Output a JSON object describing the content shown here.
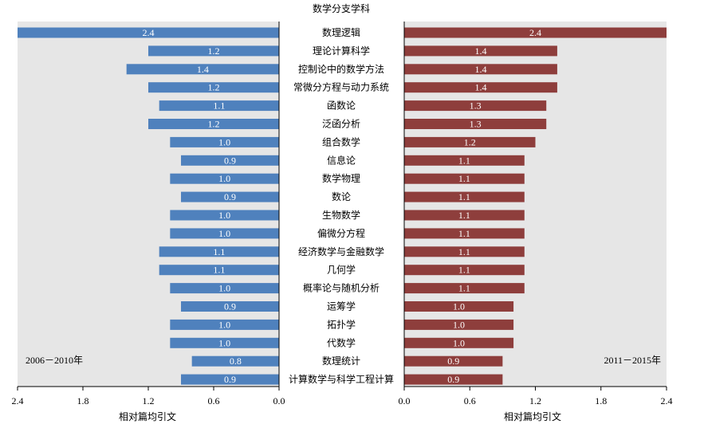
{
  "chart_data": {
    "type": "bar",
    "title": "数学分支学科",
    "categories": [
      "数理逻辑",
      "理论计算科学",
      "控制论中的数学方法",
      "常微分方程与动力系统",
      "函数论",
      "泛函分析",
      "组合数学",
      "信息论",
      "数学物理",
      "数论",
      "生物数学",
      "偏微分方程",
      "经济数学与金融数学",
      "几何学",
      "概率论与随机分析",
      "运筹学",
      "拓扑学",
      "代数学",
      "数理统计",
      "计算数学与科学工程计算"
    ],
    "series": [
      {
        "name": "2006－2010年",
        "color": "#4f81bd",
        "values": [
          2.4,
          1.2,
          1.4,
          1.2,
          1.1,
          1.2,
          1.0,
          0.9,
          1.0,
          0.9,
          1.0,
          1.0,
          1.1,
          1.1,
          1.0,
          0.9,
          1.0,
          1.0,
          0.8,
          0.9
        ],
        "labels": [
          "2.4",
          "1.2",
          "1.4",
          "1.2",
          "1.1",
          "1.2",
          "1.0",
          "0.9",
          "1.0",
          "0.9",
          "1.0",
          "1.0",
          "1.1",
          "1.1",
          "1.0",
          "0.9",
          "1.0",
          "1.0",
          "0.8",
          "0.9"
        ],
        "direction": "left"
      },
      {
        "name": "2011－2015年",
        "color": "#8e3e3c",
        "values": [
          2.4,
          1.4,
          1.4,
          1.4,
          1.3,
          1.3,
          1.2,
          1.1,
          1.1,
          1.1,
          1.1,
          1.1,
          1.1,
          1.1,
          1.1,
          1.0,
          1.0,
          1.0,
          0.9,
          0.9
        ],
        "labels": [
          "2.4",
          "1.4",
          "1.4",
          "1.4",
          "1.3",
          "1.3",
          "1.2",
          "1.1",
          "1.1",
          "1.1",
          "1.1",
          "1.1",
          "1.1",
          "1.1",
          "1.1",
          "1.0",
          "1.0",
          "1.0",
          "0.9",
          "0.9"
        ],
        "direction": "right"
      }
    ],
    "left_axis": {
      "label": "相对篇均引文",
      "ticks": [
        "2.4",
        "1.8",
        "1.2",
        "0.6",
        "0.0"
      ],
      "range": [
        2.4,
        0
      ]
    },
    "right_axis": {
      "label": "相对篇均引文",
      "ticks": [
        "0.0",
        "0.6",
        "1.2",
        "1.8",
        "2.4"
      ],
      "range": [
        0,
        2.4
      ]
    },
    "grid": false,
    "background_color": "#e6e6e6"
  }
}
